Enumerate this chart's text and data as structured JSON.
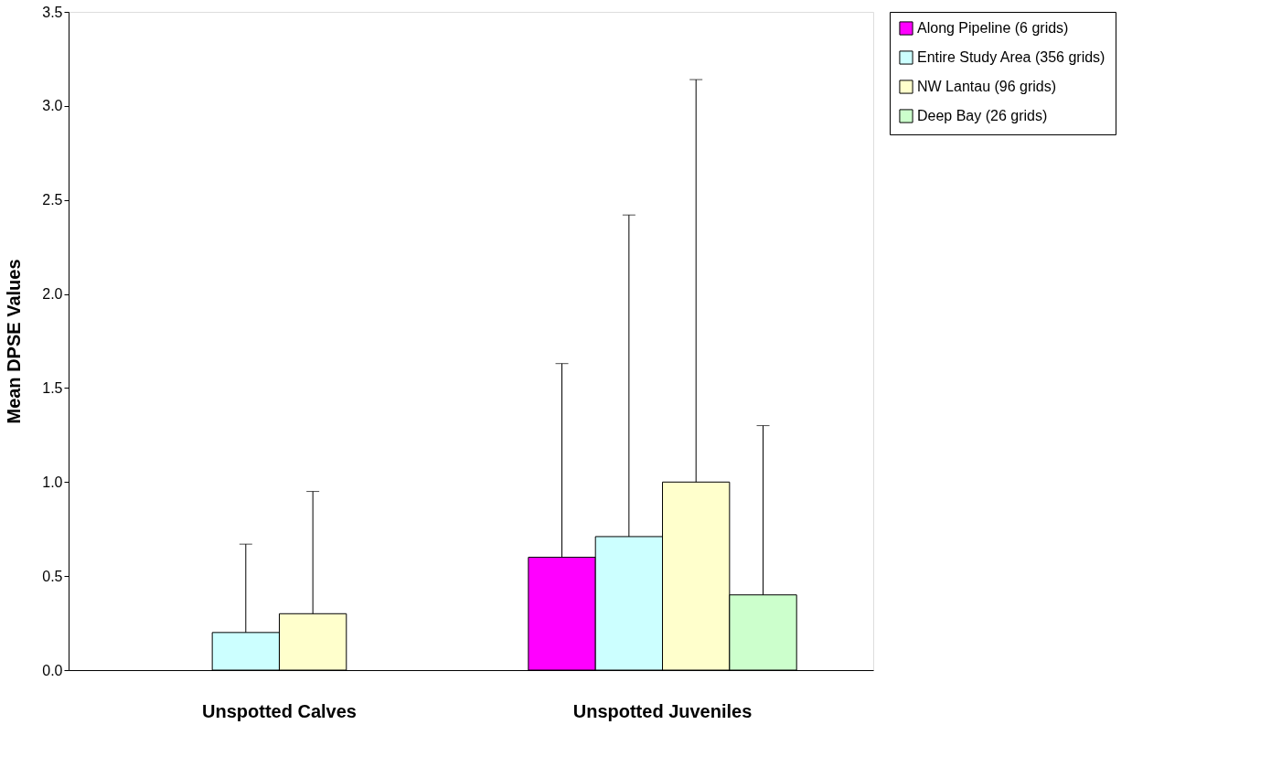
{
  "chart_data": {
    "type": "bar",
    "ylabel": "Mean DPSE Values",
    "categories": [
      "Unspotted Calves",
      "Unspotted Juveniles"
    ],
    "series": [
      {
        "name": "Along Pipeline (6 grids)",
        "color": "#ff00ff",
        "values": [
          null,
          0.6
        ],
        "errors": [
          null,
          [
            0.6,
            1.63
          ]
        ]
      },
      {
        "name": "Entire Study Area (356 grids)",
        "color": "#ccffff",
        "values": [
          0.2,
          0.71
        ],
        "errors": [
          [
            0.2,
            0.67
          ],
          [
            0.71,
            2.42
          ]
        ]
      },
      {
        "name": "NW Lantau (96 grids)",
        "color": "#ffffcc",
        "values": [
          0.3,
          1.0
        ],
        "errors": [
          [
            0.3,
            0.95
          ],
          [
            1.0,
            3.14
          ]
        ]
      },
      {
        "name": "Deep Bay (26 grids)",
        "color": "#ccffcc",
        "values": [
          null,
          0.4
        ],
        "errors": [
          null,
          [
            0.4,
            1.3
          ]
        ]
      }
    ],
    "ylim": [
      0,
      3.5
    ],
    "yticks": [
      {
        "value": 0,
        "label": "0.0"
      },
      {
        "value": 0.5,
        "label": "0.5"
      },
      {
        "value": 1,
        "label": "1.0"
      },
      {
        "value": 1.5,
        "label": "1.5"
      },
      {
        "value": 2,
        "label": "2.0"
      },
      {
        "value": 2.5,
        "label": "2.5"
      },
      {
        "value": 3,
        "label": "3.0"
      },
      {
        "value": 3.5,
        "label": "3.5"
      }
    ],
    "grid": false,
    "legend": "right"
  }
}
